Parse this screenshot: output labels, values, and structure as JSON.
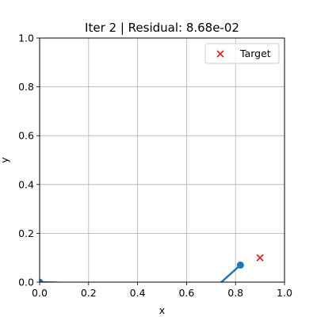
{
  "chart_data": {
    "type": "line",
    "title": "Iter 2 | Residual: 8.68e-02",
    "xlabel": "x",
    "ylabel": "y",
    "xlim": [
      0,
      1
    ],
    "ylim": [
      0,
      1
    ],
    "xticks": [
      "0.0",
      "0.2",
      "0.4",
      "0.6",
      "0.8",
      "1.0"
    ],
    "yticks": [
      "0.0",
      "0.2",
      "0.4",
      "0.6",
      "0.8",
      "1.0"
    ],
    "grid": true,
    "legend_position": "top-right",
    "series": [
      {
        "kind": "arm",
        "color": "#1f77b4",
        "points": [
          [
            0.0,
            0.0
          ],
          [
            0.72,
            -0.02
          ],
          [
            0.82,
            0.07
          ]
        ],
        "markers_at": [
          0,
          2
        ]
      },
      {
        "kind": "target",
        "name": "Target",
        "marker": "x",
        "color": "#d62728",
        "points": [
          [
            0.9,
            0.1
          ]
        ]
      }
    ]
  }
}
